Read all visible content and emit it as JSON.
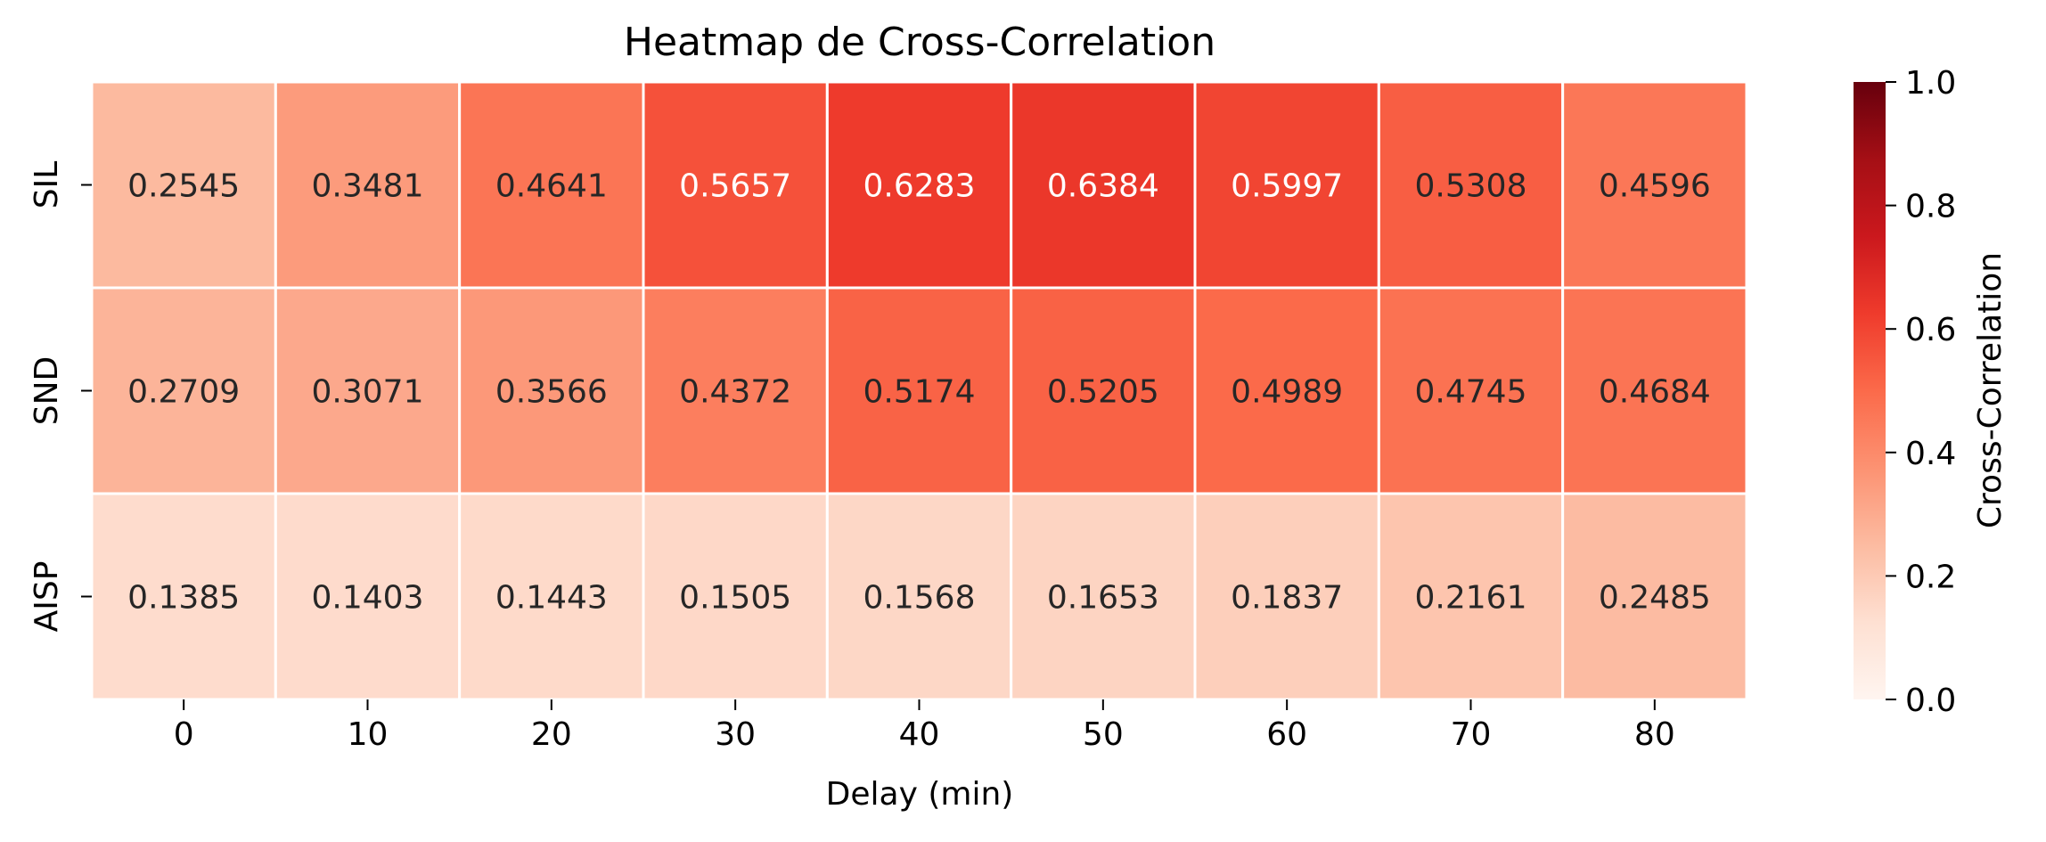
{
  "chart_data": {
    "type": "heatmap",
    "title": "Heatmap de Cross-Correlation",
    "xlabel": "Delay (min)",
    "ylabel": "",
    "x": [
      "0",
      "10",
      "20",
      "30",
      "40",
      "50",
      "60",
      "70",
      "80"
    ],
    "rows": [
      {
        "name": "SIL",
        "values": [
          0.2545,
          0.3481,
          0.4641,
          0.5657,
          0.6283,
          0.6384,
          0.5997,
          0.5308,
          0.4596
        ]
      },
      {
        "name": "SND",
        "values": [
          0.2709,
          0.3071,
          0.3566,
          0.4372,
          0.5174,
          0.5205,
          0.4989,
          0.4745,
          0.4684
        ]
      },
      {
        "name": "AISP",
        "values": [
          0.1385,
          0.1403,
          0.1443,
          0.1505,
          0.1568,
          0.1653,
          0.1837,
          0.2161,
          0.2485
        ]
      }
    ],
    "colorbar": {
      "label": "Cross-Correlation",
      "range": [
        0,
        1
      ],
      "ticks": [
        "0.0",
        "0.2",
        "0.4",
        "0.6",
        "0.8",
        "1.0"
      ],
      "colormap": "Reds",
      "colormap_stops": [
        "#fff5f0",
        "#fee0d2",
        "#fcbba1",
        "#fc9272",
        "#fb6a4a",
        "#ef3b2c",
        "#cb181d",
        "#a50f15",
        "#67000d"
      ]
    },
    "annotation_text_colors": {
      "dark": "#262626",
      "light": "#ffffff"
    },
    "grid": false
  }
}
